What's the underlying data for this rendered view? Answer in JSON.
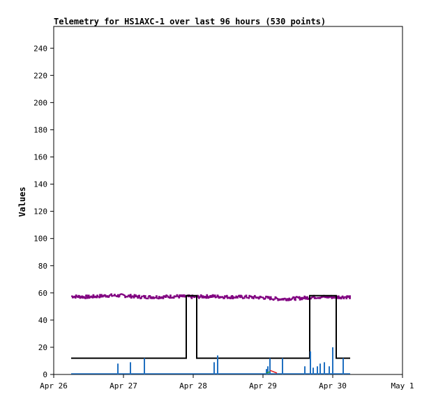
{
  "chart_data": {
    "type": "line",
    "title": "Telemetry for HS1AXC-1 over last 96 hours (530 points)",
    "ylabel": "Values",
    "xlabel": "",
    "ylim": [
      0,
      256
    ],
    "yticks": [
      0,
      20,
      40,
      60,
      80,
      100,
      120,
      140,
      160,
      180,
      200,
      220,
      240
    ],
    "xlim": [
      "2024-04-26T00:00",
      "2024-05-01T00:00"
    ],
    "xticks": [
      {
        "label": "Apr 26",
        "day": 0
      },
      {
        "label": "Apr 27",
        "day": 1
      },
      {
        "label": "Apr 28",
        "day": 2
      },
      {
        "label": "Apr 29",
        "day": 3
      },
      {
        "label": "Apr 30",
        "day": 4
      },
      {
        "label": "May 1",
        "day": 5
      }
    ],
    "grid": false,
    "series": [
      {
        "color": "#800080",
        "style": "noisy",
        "x": [
          0.25,
          0.5,
          0.75,
          1.0,
          1.25,
          1.5,
          1.75,
          2.0,
          2.25,
          2.5,
          2.75,
          3.0,
          3.25,
          3.5,
          3.75,
          4.0,
          4.25
        ],
        "y": [
          57.5,
          57,
          58,
          58,
          57,
          57,
          57.5,
          57,
          57.5,
          57,
          57,
          56.5,
          55.5,
          56,
          57,
          57,
          57
        ]
      },
      {
        "color": "#000000",
        "style": "step",
        "x": [
          0.25,
          1.9,
          1.9,
          2.05,
          2.05,
          3.67,
          3.67,
          4.05,
          4.05,
          4.25
        ],
        "y": [
          12,
          12,
          58,
          58,
          12,
          12,
          58,
          58,
          12,
          12
        ]
      },
      {
        "color": "#1f6fc0",
        "style": "spikes",
        "x": [
          0.92,
          1.1,
          1.3,
          2.3,
          2.35,
          3.05,
          3.07,
          3.1,
          3.28,
          3.6,
          3.68,
          3.72,
          3.78,
          3.82,
          3.88,
          3.95,
          4.0,
          4.15
        ],
        "y": [
          8,
          9,
          12,
          9,
          14,
          4,
          6,
          12,
          12,
          6,
          17,
          5,
          6,
          8,
          9,
          6,
          20,
          12
        ]
      },
      {
        "color": "#e02020",
        "style": "line",
        "x": [
          3.1,
          3.2
        ],
        "y": [
          3,
          1
        ]
      },
      {
        "color": "#2e9a2e",
        "style": "line",
        "x": [
          3.05,
          3.1
        ],
        "y": [
          1,
          2
        ]
      }
    ]
  }
}
